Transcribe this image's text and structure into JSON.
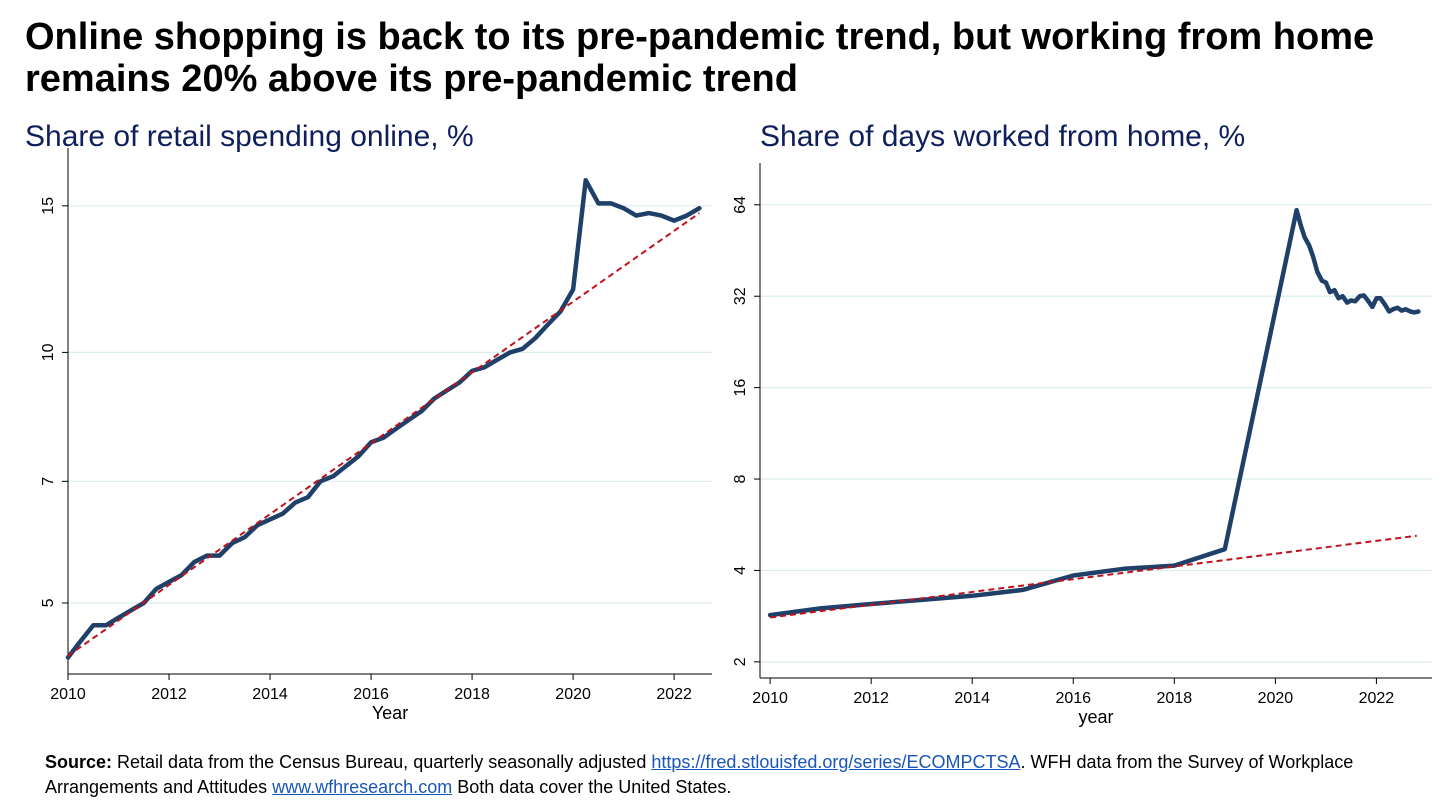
{
  "headline": "Online shopping is back to its pre-pandemic trend, but working from home remains 20% above its pre-pandemic trend",
  "colors": {
    "series": "#1f4068",
    "trend": "#c0121c",
    "grid": "#dbeeee",
    "title": "#0f1f5c",
    "link": "#1a56b8"
  },
  "footnote": {
    "label": "Source:",
    "text1": " Retail data from the Census Bureau, quarterly seasonally adjusted ",
    "link1": "https://fred.stlouisfed.org/series/ECOMPCTSA",
    "text2": ". WFH data from the Survey of Workplace Arrangements and Attitudes ",
    "link2": "www.wfhresearch.com",
    "text3": " Both data cover the United States."
  },
  "chart_data": [
    {
      "type": "line",
      "title": "Share of retail spending online, %",
      "xlabel": "Year",
      "ylabel": "",
      "yscale": "log",
      "xlim": [
        2010,
        2022.75
      ],
      "ylim": [
        4.2,
        16.2
      ],
      "xticks": [
        2010,
        2012,
        2014,
        2016,
        2018,
        2020,
        2022
      ],
      "yticks": [
        5,
        7,
        10,
        15
      ],
      "grid": true,
      "series": [
        {
          "role": "actual",
          "x": [
            2010,
            2010.25,
            2010.5,
            2010.75,
            2011,
            2011.25,
            2011.5,
            2011.75,
            2012,
            2012.25,
            2012.5,
            2012.75,
            2013,
            2013.25,
            2013.5,
            2013.75,
            2014,
            2014.25,
            2014.5,
            2014.75,
            2015,
            2015.25,
            2015.5,
            2015.75,
            2016,
            2016.25,
            2016.5,
            2016.75,
            2017,
            2017.25,
            2017.5,
            2017.75,
            2018,
            2018.25,
            2018.5,
            2018.75,
            2019,
            2019.25,
            2019.5,
            2019.75,
            2020,
            2020.25,
            2020.5,
            2020.75,
            2021,
            2021.25,
            2021.5,
            2021.75,
            2022,
            2022.25,
            2022.5
          ],
          "values": [
            4.3,
            4.5,
            4.7,
            4.7,
            4.8,
            4.9,
            5.0,
            5.2,
            5.3,
            5.4,
            5.6,
            5.7,
            5.7,
            5.9,
            6.0,
            6.2,
            6.3,
            6.4,
            6.6,
            6.7,
            7.0,
            7.1,
            7.3,
            7.5,
            7.8,
            7.9,
            8.1,
            8.3,
            8.5,
            8.8,
            9.0,
            9.2,
            9.5,
            9.6,
            9.8,
            10.0,
            10.1,
            10.4,
            10.8,
            11.2,
            11.9,
            16.1,
            15.1,
            15.1,
            14.9,
            14.6,
            14.7,
            14.6,
            14.4,
            14.6,
            14.9
          ]
        },
        {
          "role": "trend",
          "x": [
            2010,
            2022.5
          ],
          "values": [
            4.32,
            14.7
          ]
        }
      ]
    },
    {
      "type": "line",
      "title": "Share of days worked from home, %",
      "xlabel": "year",
      "ylabel": "",
      "yscale": "log",
      "xlim": [
        2009.8,
        2023.1
      ],
      "ylim": [
        1.88,
        70
      ],
      "xticks": [
        2010,
        2012,
        2014,
        2016,
        2018,
        2020,
        2022
      ],
      "yticks": [
        2,
        4,
        8,
        16,
        32,
        64
      ],
      "grid": true,
      "series": [
        {
          "role": "actual",
          "x": [
            2010,
            2011,
            2012,
            2013,
            2014,
            2015,
            2016,
            2017,
            2018,
            2019,
            2020.42,
            2020.5,
            2020.58,
            2020.67,
            2020.75,
            2020.83,
            2020.92,
            2021,
            2021.08,
            2021.17,
            2021.25,
            2021.33,
            2021.42,
            2021.5,
            2021.58,
            2021.67,
            2021.75,
            2021.83,
            2021.92,
            2022,
            2022.08,
            2022.17,
            2022.25,
            2022.33,
            2022.42,
            2022.5,
            2022.58,
            2022.67,
            2022.75,
            2022.83
          ],
          "values": [
            2.85,
            3.0,
            3.1,
            3.2,
            3.3,
            3.45,
            3.85,
            4.05,
            4.15,
            4.7,
            61.5,
            55,
            50,
            47,
            43,
            38.5,
            36,
            35.5,
            33,
            33.5,
            31.5,
            32,
            30.5,
            31,
            30.8,
            32,
            32.2,
            31,
            29.5,
            31.5,
            31.5,
            30,
            28.5,
            29,
            29.3,
            28.7,
            29,
            28.5,
            28.3,
            28.5
          ]
        },
        {
          "role": "trend",
          "x": [
            2010,
            2022.8
          ],
          "values": [
            2.8,
            5.2
          ]
        }
      ]
    }
  ]
}
